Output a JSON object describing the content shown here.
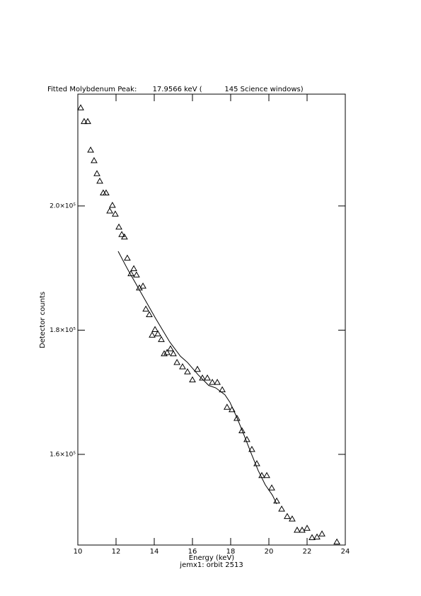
{
  "chart_data": {
    "type": "scatter",
    "title": "Fitted Molybdenum Peak:       17.9566 keV (          145 Science windows)",
    "x_label": "Energy (keV)",
    "subtitle": "jemx1: orbit 2513",
    "y_label": "Detector counts",
    "xlim": [
      10,
      24
    ],
    "xticks": [
      10,
      12,
      14,
      16,
      18,
      20,
      22,
      24
    ],
    "ylim": [
      145400,
      218000
    ],
    "yticks": [
      {
        "value": 160000,
        "label": "1.6×10⁵"
      },
      {
        "value": 180000,
        "label": "1.8×10⁵"
      },
      {
        "value": 200000,
        "label": "2.0×10⁵"
      }
    ],
    "series": [
      {
        "type": "scatter",
        "marker": "triangle",
        "color": "#000000",
        "x": [
          10.15,
          10.33,
          10.52,
          10.67,
          10.85,
          11.0,
          11.15,
          11.33,
          11.48,
          11.67,
          11.81,
          11.96,
          12.15,
          12.3,
          12.44,
          12.59,
          12.78,
          12.93,
          13.07,
          13.22,
          13.41,
          13.56,
          13.74,
          13.89,
          14.04,
          14.19,
          14.37,
          14.52,
          14.67,
          14.85,
          15.0,
          15.19,
          15.48,
          15.74,
          16.0,
          16.26,
          16.52,
          16.78,
          17.04,
          17.3,
          17.56,
          17.81,
          18.07,
          18.33,
          18.59,
          18.85,
          19.11,
          19.37,
          19.63,
          19.89,
          20.15,
          20.41,
          20.67,
          20.96,
          21.22,
          21.48,
          21.74,
          22.0,
          22.26,
          22.52,
          22.78,
          23.56
        ],
        "values": [
          215800,
          213600,
          213600,
          209000,
          207300,
          205200,
          204000,
          202100,
          202100,
          199200,
          200100,
          198700,
          196600,
          195400,
          195000,
          191600,
          189100,
          189900,
          188900,
          186800,
          187100,
          183400,
          182500,
          179200,
          180100,
          179400,
          178500,
          176200,
          176400,
          177000,
          176200,
          174800,
          174100,
          173300,
          172000,
          173700,
          172300,
          172300,
          171600,
          171600,
          170400,
          167600,
          167200,
          165800,
          163800,
          162400,
          160800,
          158500,
          156600,
          156600,
          154600,
          152500,
          151200,
          150000,
          149600,
          147800,
          147800,
          148100,
          146600,
          146700,
          147200,
          145900
        ]
      },
      {
        "type": "line",
        "color": "#000000",
        "x": [
          12.11,
          12.59,
          13.33,
          14.07,
          14.81,
          15.37,
          15.74,
          16.3,
          16.85,
          17.22,
          17.7,
          17.96,
          18.33,
          18.7,
          19.07,
          19.44,
          19.81,
          20.19,
          20.41
        ],
        "values": [
          192700,
          189900,
          185900,
          181900,
          178100,
          175800,
          174800,
          172800,
          171100,
          170700,
          169600,
          168400,
          165900,
          163100,
          160200,
          157400,
          155100,
          153400,
          152000
        ]
      }
    ]
  }
}
